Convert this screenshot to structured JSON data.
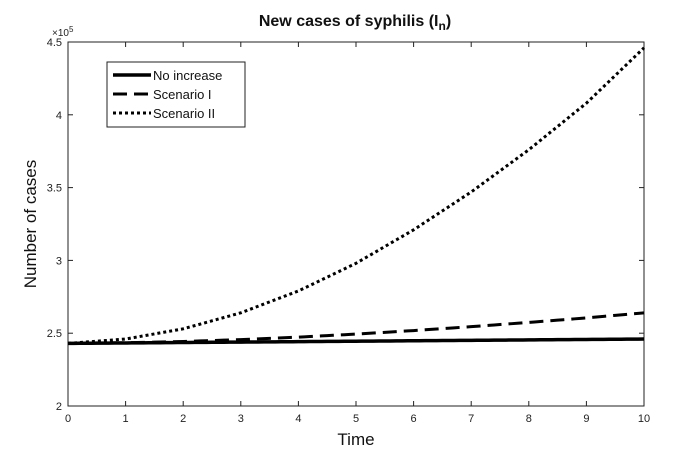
{
  "chart_data": {
    "type": "line",
    "title": {
      "main": "New cases of syphilis (I",
      "subscript": "n",
      "suffix": ")"
    },
    "xlabel": "Time",
    "ylabel": "Number of cases",
    "xlim": [
      0,
      10
    ],
    "ylim": [
      200000,
      450000
    ],
    "xticks": [
      0,
      1,
      2,
      3,
      4,
      5,
      6,
      7,
      8,
      9,
      10
    ],
    "xtick_labels": [
      "0",
      "1",
      "2",
      "3",
      "4",
      "5",
      "6",
      "7",
      "8",
      "9",
      "10"
    ],
    "yticks": [
      200000,
      250000,
      300000,
      350000,
      400000,
      450000
    ],
    "ytick_labels": [
      "2",
      "2.5",
      "3",
      "3.5",
      "4",
      "4.5"
    ],
    "y_multiplier": {
      "base": "×10",
      "exponent": "5"
    },
    "grid": false,
    "legend_position": "top-left",
    "x": [
      0,
      1,
      2,
      3,
      4,
      5,
      6,
      7,
      8,
      9,
      10
    ],
    "series": [
      {
        "name": "No increase",
        "style": "solid",
        "values": [
          243000,
          243300,
          243600,
          243900,
          244200,
          244500,
          244800,
          245100,
          245400,
          245700,
          246000
        ]
      },
      {
        "name": "Scenario I",
        "style": "dashed",
        "values": [
          243000,
          243400,
          244300,
          245600,
          247300,
          249400,
          251800,
          254500,
          257400,
          260500,
          264000
        ]
      },
      {
        "name": "Scenario II",
        "style": "dotted",
        "values": [
          243000,
          246000,
          253000,
          264000,
          279000,
          298000,
          321000,
          347000,
          376000,
          408000,
          446000
        ]
      }
    ]
  },
  "colors": {
    "line": "#000000",
    "axis": "#222222"
  }
}
